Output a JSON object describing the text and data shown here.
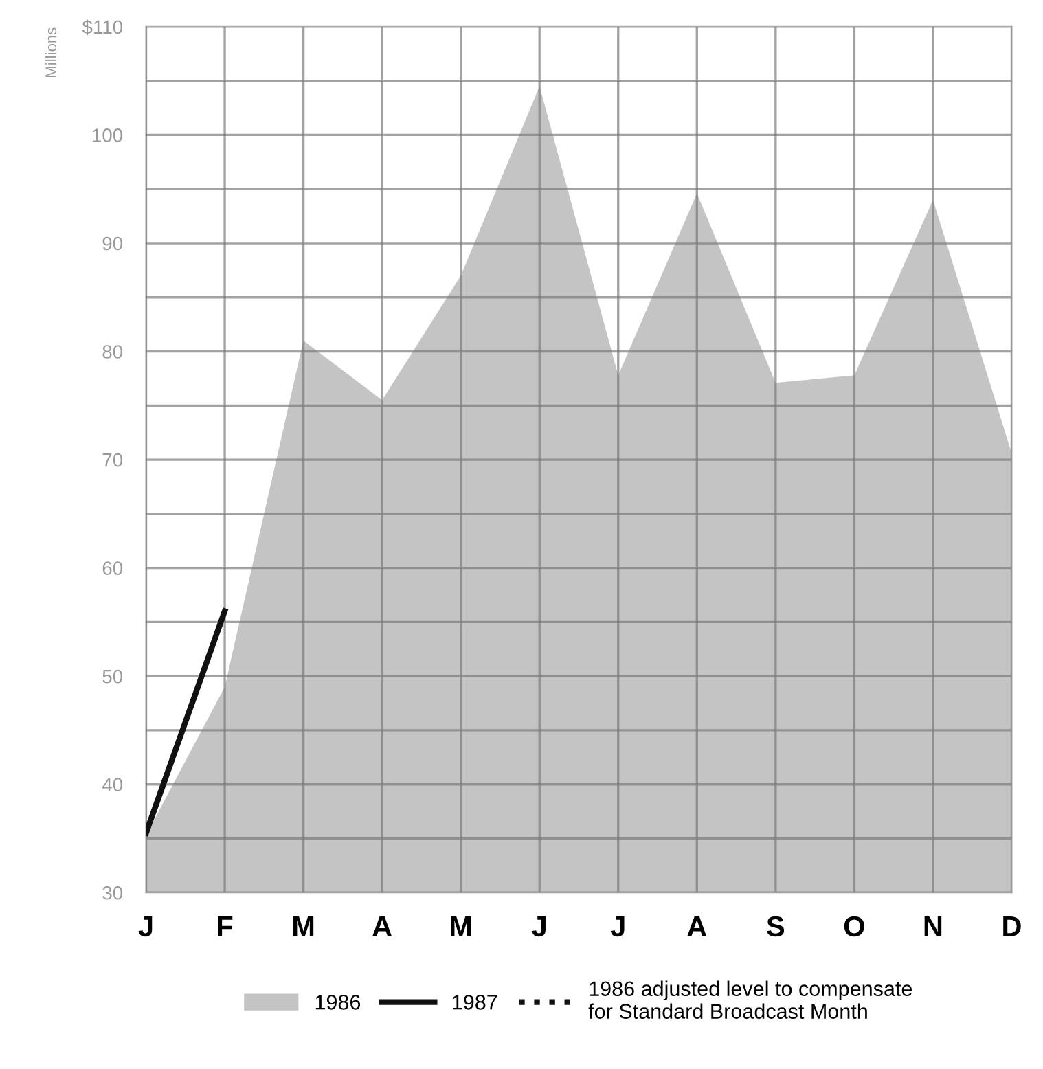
{
  "chart_data": {
    "type": "area",
    "ylabel": "Millions",
    "categories": [
      "J",
      "F",
      "M",
      "A",
      "M",
      "J",
      "J",
      "A",
      "S",
      "O",
      "N",
      "D"
    ],
    "series": [
      {
        "name": "1986",
        "color": "#c4c4c4",
        "values": [
          35.3,
          49,
          81,
          75.5,
          87,
          104.5,
          77.8,
          94.6,
          77.1,
          77.8,
          94,
          70.6
        ]
      },
      {
        "name": "1987",
        "type": "line",
        "color": "#111111",
        "line_style": "solid",
        "values": [
          35.5,
          56,
          null,
          null,
          null,
          null,
          null,
          null,
          null,
          null,
          null,
          null
        ]
      },
      {
        "name": "1986 adjusted level to compensate for Standard Broadcast Month",
        "type": "line",
        "color": "#111111",
        "line_style": "dotted",
        "values": [
          null,
          null,
          null,
          null,
          null,
          null,
          null,
          null,
          null,
          null,
          null,
          null
        ]
      }
    ],
    "ylim": [
      30,
      110
    ],
    "yticks": [
      30,
      {
        "value": 35,
        "label": null
      },
      40,
      {
        "value": 45,
        "label": null
      },
      50,
      {
        "value": 55,
        "label": null
      },
      60,
      {
        "value": 65,
        "label": null
      },
      70,
      {
        "value": 75,
        "label": null
      },
      80,
      {
        "value": 85,
        "label": null
      },
      90,
      {
        "value": 95,
        "label": null
      },
      100,
      {
        "value": 105,
        "label": null
      },
      {
        "value": 110,
        "label": "$110"
      }
    ],
    "grid": true,
    "legend": "bottom"
  }
}
